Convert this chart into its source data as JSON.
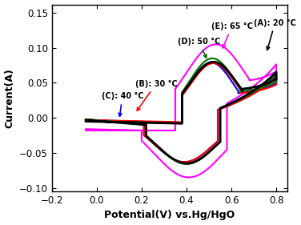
{
  "xlabel": "Potential(V) vs.Hg/HgO",
  "ylabel": "Current(A)",
  "xlim": [
    -0.2,
    0.85
  ],
  "ylim": [
    -0.105,
    0.162
  ],
  "yticks": [
    -0.1,
    -0.05,
    0.0,
    0.05,
    0.1,
    0.15
  ],
  "xticks": [
    -0.2,
    0.0,
    0.2,
    0.4,
    0.6,
    0.8
  ],
  "curves": {
    "A": {
      "color": "black",
      "lw": 2.0
    },
    "B": {
      "color": "red",
      "lw": 1.5
    },
    "C": {
      "color": "blue",
      "lw": 1.5
    },
    "D": {
      "color": "#007000",
      "lw": 1.5
    },
    "E": {
      "color": "magenta",
      "lw": 1.5
    }
  },
  "background": "white"
}
